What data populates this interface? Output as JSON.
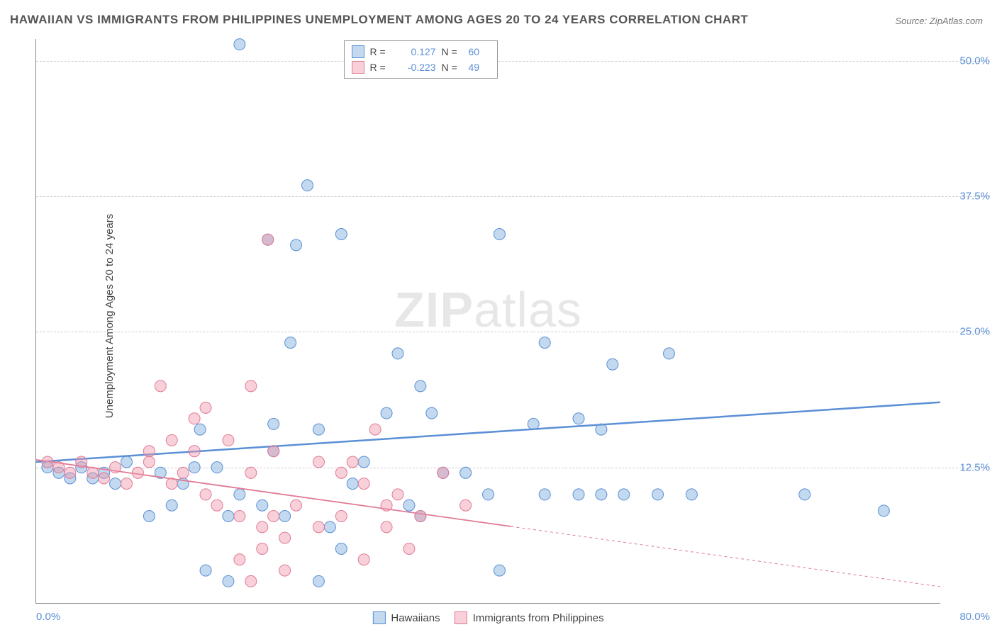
{
  "title": "HAWAIIAN VS IMMIGRANTS FROM PHILIPPINES UNEMPLOYMENT AMONG AGES 20 TO 24 YEARS CORRELATION CHART",
  "source": "Source: ZipAtlas.com",
  "ylabel": "Unemployment Among Ages 20 to 24 years",
  "watermark_a": "ZIP",
  "watermark_b": "atlas",
  "chart": {
    "type": "scatter",
    "xlim": [
      0,
      80
    ],
    "ylim": [
      0,
      52
    ],
    "xtick_left": "0.0%",
    "xtick_right": "80.0%",
    "yticks": [
      {
        "v": 12.5,
        "label": "12.5%"
      },
      {
        "v": 25.0,
        "label": "25.0%"
      },
      {
        "v": 37.5,
        "label": "37.5%"
      },
      {
        "v": 50.0,
        "label": "50.0%"
      }
    ],
    "grid_color": "#cccccc",
    "background_color": "#ffffff",
    "marker_radius": 8,
    "marker_opacity": 0.5,
    "series": [
      {
        "name": "Hawaiians",
        "color_fill": "rgba(120,170,220,0.45)",
        "color_stroke": "#5b8fd6",
        "R": "0.127",
        "N": "60",
        "trend": {
          "x1": 0,
          "y1": 13.0,
          "x2": 80,
          "y2": 18.5,
          "solid_until_x": 80,
          "stroke_width": 2.5
        },
        "points": [
          [
            18,
            51.5
          ],
          [
            24,
            38.5
          ],
          [
            20.5,
            33.5
          ],
          [
            23,
            33
          ],
          [
            27,
            34
          ],
          [
            41,
            34
          ],
          [
            22.5,
            24
          ],
          [
            32,
            23
          ],
          [
            31,
            17.5
          ],
          [
            35,
            17.5
          ],
          [
            45,
            24
          ],
          [
            51,
            22
          ],
          [
            34,
            20
          ],
          [
            44,
            16.5
          ],
          [
            45,
            10
          ],
          [
            40,
            10
          ],
          [
            48,
            17
          ],
          [
            21,
            14
          ],
          [
            14.5,
            16
          ],
          [
            21,
            16.5
          ],
          [
            25,
            16
          ],
          [
            29,
            13
          ],
          [
            50,
            16
          ],
          [
            58,
            10
          ],
          [
            56,
            23
          ],
          [
            68,
            10
          ],
          [
            75,
            8.5
          ],
          [
            14,
            12.5
          ],
          [
            16,
            12.5
          ],
          [
            11,
            12
          ],
          [
            13,
            11
          ],
          [
            8,
            13
          ],
          [
            6,
            12
          ],
          [
            4,
            12.5
          ],
          [
            2,
            12
          ],
          [
            3,
            11.5
          ],
          [
            1,
            12.5
          ],
          [
            5,
            11.5
          ],
          [
            7,
            11
          ],
          [
            10,
            8
          ],
          [
            12,
            9
          ],
          [
            17,
            8
          ],
          [
            18,
            10
          ],
          [
            20,
            9
          ],
          [
            22,
            8
          ],
          [
            26,
            7
          ],
          [
            28,
            11
          ],
          [
            15,
            3
          ],
          [
            17,
            2
          ],
          [
            25,
            2
          ],
          [
            27,
            5
          ],
          [
            36,
            12
          ],
          [
            55,
            10
          ],
          [
            52,
            10
          ],
          [
            50,
            10
          ],
          [
            34,
            8
          ],
          [
            33,
            9
          ],
          [
            38,
            12
          ],
          [
            41,
            3
          ],
          [
            48,
            10
          ]
        ]
      },
      {
        "name": "Immigrants from Philippines",
        "color_fill": "rgba(240,150,170,0.45)",
        "color_stroke": "#e07a95",
        "R": "-0.223",
        "N": "49",
        "trend": {
          "x1": 0,
          "y1": 13.2,
          "x2": 80,
          "y2": 1.5,
          "solid_until_x": 42,
          "stroke_width": 1.8
        },
        "points": [
          [
            20.5,
            33.5
          ],
          [
            11,
            20
          ],
          [
            14,
            17
          ],
          [
            15,
            18
          ],
          [
            17,
            15
          ],
          [
            19,
            20
          ],
          [
            1,
            13
          ],
          [
            2,
            12.5
          ],
          [
            3,
            12
          ],
          [
            4,
            13
          ],
          [
            5,
            12
          ],
          [
            6,
            11.5
          ],
          [
            7,
            12.5
          ],
          [
            8,
            11
          ],
          [
            9,
            12
          ],
          [
            10,
            13
          ],
          [
            12,
            11
          ],
          [
            13,
            12
          ],
          [
            15,
            10
          ],
          [
            16,
            9
          ],
          [
            18,
            8
          ],
          [
            19,
            12
          ],
          [
            20,
            7
          ],
          [
            21,
            8
          ],
          [
            22,
            6
          ],
          [
            23,
            9
          ],
          [
            25,
            13
          ],
          [
            27,
            12
          ],
          [
            28,
            13
          ],
          [
            29,
            11
          ],
          [
            30,
            16
          ],
          [
            31,
            9
          ],
          [
            32,
            10
          ],
          [
            33,
            5
          ],
          [
            18,
            4
          ],
          [
            20,
            5
          ],
          [
            22,
            3
          ],
          [
            25,
            7
          ],
          [
            27,
            8
          ],
          [
            29,
            4
          ],
          [
            31,
            7
          ],
          [
            34,
            8
          ],
          [
            36,
            12
          ],
          [
            38,
            9
          ],
          [
            19,
            2
          ],
          [
            21,
            14
          ],
          [
            14,
            14
          ],
          [
            12,
            15
          ],
          [
            10,
            14
          ]
        ]
      }
    ],
    "legend_bottom": [
      {
        "swatch": "blue",
        "label": "Hawaiians"
      },
      {
        "swatch": "pink",
        "label": "Immigrants from Philippines"
      }
    ]
  }
}
